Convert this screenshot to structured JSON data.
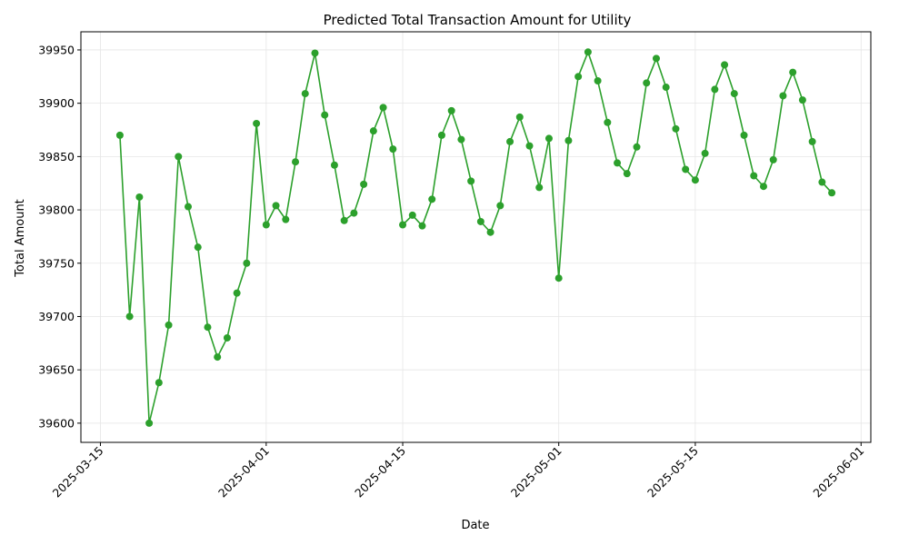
{
  "chart_data": {
    "type": "line",
    "title": "Predicted Total Transaction Amount for Utility",
    "xlabel": "Date",
    "ylabel": "Total Amount",
    "xlim": [
      "2025-03-13",
      "2025-06-02"
    ],
    "ylim": [
      39582,
      39967
    ],
    "grid": true,
    "line_color": "#2ca02c",
    "xticks": [
      "2025-03-15",
      "2025-04-01",
      "2025-04-15",
      "2025-05-01",
      "2025-05-15",
      "2025-06-01"
    ],
    "yticks": [
      39600,
      39650,
      39700,
      39750,
      39800,
      39850,
      39900,
      39950
    ],
    "series": [
      {
        "x": [
          "2025-03-17",
          "2025-03-18",
          "2025-03-19",
          "2025-03-20",
          "2025-03-21",
          "2025-03-22",
          "2025-03-23",
          "2025-03-24",
          "2025-03-25",
          "2025-03-26",
          "2025-03-27",
          "2025-03-28",
          "2025-03-29",
          "2025-03-30",
          "2025-03-31",
          "2025-04-01",
          "2025-04-02",
          "2025-04-03",
          "2025-04-04",
          "2025-04-05",
          "2025-04-06",
          "2025-04-07",
          "2025-04-08",
          "2025-04-09",
          "2025-04-10",
          "2025-04-11",
          "2025-04-12",
          "2025-04-13",
          "2025-04-14",
          "2025-04-15",
          "2025-04-16",
          "2025-04-17",
          "2025-04-18",
          "2025-04-19",
          "2025-04-20",
          "2025-04-21",
          "2025-04-22",
          "2025-04-23",
          "2025-04-24",
          "2025-04-25",
          "2025-04-26",
          "2025-04-27",
          "2025-04-28",
          "2025-04-29",
          "2025-04-30",
          "2025-05-01",
          "2025-05-02",
          "2025-05-03",
          "2025-05-04",
          "2025-05-05",
          "2025-05-06",
          "2025-05-07",
          "2025-05-08",
          "2025-05-09",
          "2025-05-10",
          "2025-05-11",
          "2025-05-12",
          "2025-05-13",
          "2025-05-14",
          "2025-05-15",
          "2025-05-16",
          "2025-05-17",
          "2025-05-18",
          "2025-05-19",
          "2025-05-20",
          "2025-05-21",
          "2025-05-22",
          "2025-05-23",
          "2025-05-24",
          "2025-05-25",
          "2025-05-26",
          "2025-05-27",
          "2025-05-28",
          "2025-05-29"
        ],
        "y": [
          39870,
          39700,
          39812,
          39600,
          39638,
          39692,
          39850,
          39803,
          39765,
          39690,
          39662,
          39680,
          39722,
          39750,
          39881,
          39786,
          39804,
          39791,
          39845,
          39909,
          39947,
          39889,
          39842,
          39790,
          39797,
          39824,
          39874,
          39896,
          39857,
          39786,
          39795,
          39785,
          39810,
          39870,
          39893,
          39866,
          39827,
          39789,
          39779,
          39804,
          39864,
          39887,
          39860,
          39821,
          39867,
          39736,
          39865,
          39925,
          39948,
          39921,
          39882,
          39844,
          39834,
          39859,
          39919,
          39942,
          39915,
          39876,
          39838,
          39828,
          39853,
          39913,
          39936,
          39909,
          39870,
          39832,
          39822,
          39847,
          39907,
          39929,
          39903,
          39864,
          39826,
          39816
        ]
      }
    ]
  }
}
